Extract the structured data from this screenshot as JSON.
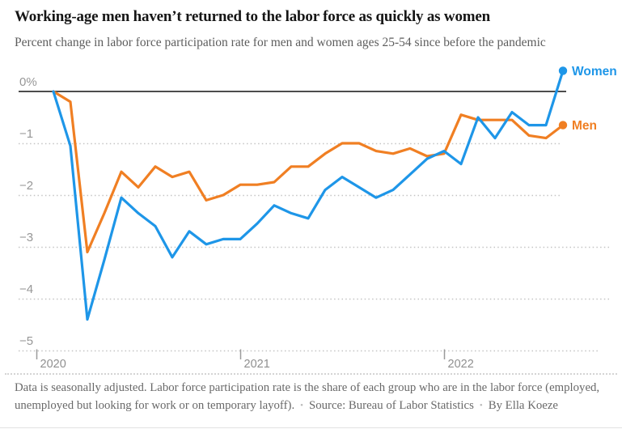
{
  "header": {
    "title": "Working-age men haven’t returned to the labor force as quickly as women",
    "subtitle": "Percent change in labor force participation rate for men and women ages 25-54 since before the pandemic"
  },
  "chart_data": {
    "type": "line",
    "title": "Working-age men haven’t returned to the labor force as quickly as women",
    "subtitle": "Percent change in labor force participation rate for men and women ages 25-54 since before the pandemic",
    "x_unit": "month",
    "x": [
      "Feb 2020",
      "Mar 2020",
      "Apr 2020",
      "May 2020",
      "Jun 2020",
      "Jul 2020",
      "Aug 2020",
      "Sep 2020",
      "Oct 2020",
      "Nov 2020",
      "Dec 2020",
      "Jan 2021",
      "Feb 2021",
      "Mar 2021",
      "Apr 2021",
      "May 2021",
      "Jun 2021",
      "Jul 2021",
      "Aug 2021",
      "Sep 2021",
      "Oct 2021",
      "Nov 2021",
      "Dec 2021",
      "Jan 2022",
      "Feb 2022",
      "Mar 2022",
      "Apr 2022",
      "May 2022",
      "Jun 2022",
      "Jul 2022",
      "Aug 2022"
    ],
    "series": [
      {
        "name": "Women",
        "color": "#1e96e8",
        "values": [
          0,
          -1.05,
          -4.4,
          -3.25,
          -2.05,
          -2.35,
          -2.6,
          -3.2,
          -2.7,
          -2.95,
          -2.85,
          -2.85,
          -2.55,
          -2.2,
          -2.35,
          -2.45,
          -1.9,
          -1.65,
          -1.85,
          -2.05,
          -1.9,
          -1.6,
          -1.3,
          -1.15,
          -1.4,
          -0.5,
          -0.9,
          -0.4,
          -0.65,
          -0.65,
          0.4
        ]
      },
      {
        "name": "Men",
        "color": "#f07f23",
        "values": [
          0,
          -0.2,
          -3.1,
          -2.35,
          -1.55,
          -1.85,
          -1.45,
          -1.65,
          -1.55,
          -2.1,
          -2.0,
          -1.8,
          -1.8,
          -1.75,
          -1.45,
          -1.45,
          -1.2,
          -1.0,
          -1.0,
          -1.15,
          -1.2,
          -1.1,
          -1.25,
          -1.2,
          -0.45,
          -0.55,
          -0.55,
          -0.55,
          -0.85,
          -0.9,
          -0.65
        ]
      }
    ],
    "y_axis": {
      "range": [
        -5,
        0.5
      ],
      "gridlines": "dotted",
      "ticks": [
        {
          "label": "0%",
          "value": 0
        },
        {
          "label": "−1",
          "value": -1
        },
        {
          "label": "−2",
          "value": -2
        },
        {
          "label": "−3",
          "value": -3
        },
        {
          "label": "−4",
          "value": -4
        },
        {
          "label": "−5",
          "value": -5
        }
      ]
    },
    "x_axis": {
      "ticks": [
        {
          "label": "2020",
          "month_offset": -1
        },
        {
          "label": "2021",
          "month_offset": 11
        },
        {
          "label": "2022",
          "month_offset": 23
        }
      ]
    },
    "legend": "end-of-line labels"
  },
  "footer": {
    "note": "Data is seasonally adjusted. Labor force participation rate is the share of each group who are in the labor force (employed, unemployed but looking for work or on temporary layoff).",
    "source": "Source: Bureau of Labor Statistics",
    "byline": "By Ella Koeze"
  }
}
